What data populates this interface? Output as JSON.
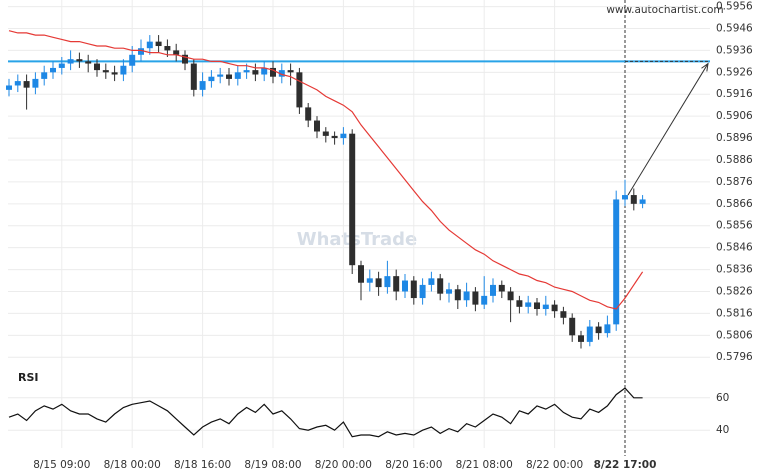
{
  "chart_data": {
    "type": "candlestick",
    "source": "www.autochartist.com",
    "watermark": "WhatsTrade",
    "categories": [
      null,
      null,
      null,
      null,
      null,
      null,
      "8/15 09:00",
      null,
      null,
      null,
      null,
      null,
      null,
      null,
      "8/18 00:00",
      null,
      null,
      null,
      null,
      null,
      null,
      null,
      "8/18 16:00",
      null,
      null,
      null,
      null,
      null,
      null,
      null,
      "8/19 08:00",
      null,
      null,
      null,
      null,
      null,
      null,
      null,
      "8/20 00:00",
      null,
      null,
      null,
      null,
      null,
      null,
      null,
      "8/20 16:00",
      null,
      null,
      null,
      null,
      null,
      null,
      null,
      "8/21 08:00",
      null,
      null,
      null,
      null,
      null,
      null,
      null,
      "8/22 00:00",
      null,
      null,
      null,
      null,
      null,
      null,
      null,
      "8/22 17:00",
      null,
      null
    ],
    "open": [
      0.5918,
      0.592,
      0.5922,
      0.5919,
      0.5923,
      0.5926,
      0.5928,
      0.593,
      0.5932,
      0.5931,
      0.593,
      0.5927,
      0.5926,
      0.5925,
      0.5929,
      0.5934,
      0.5937,
      0.594,
      0.5938,
      0.5936,
      0.5934,
      0.593,
      0.5918,
      0.5922,
      0.5924,
      0.5925,
      0.5923,
      0.5926,
      0.5927,
      0.5925,
      0.5928,
      0.5924,
      0.5927,
      0.5926,
      0.591,
      0.5904,
      0.5899,
      0.5897,
      0.5896,
      0.5898,
      0.5838,
      0.583,
      0.5832,
      0.5828,
      0.5833,
      0.5826,
      0.5831,
      0.5823,
      0.5829,
      0.5832,
      0.5825,
      0.5827,
      0.5822,
      0.5826,
      0.582,
      0.5824,
      0.5829,
      0.5826,
      0.5822,
      0.5819,
      0.5821,
      0.5818,
      0.582,
      0.5817,
      0.5814,
      0.5806,
      0.5803,
      0.581,
      0.5807,
      0.5811,
      0.5868,
      0.587,
      0.5866
    ],
    "high": [
      0.5923,
      0.5925,
      0.5925,
      0.5926,
      0.5929,
      0.5931,
      0.5933,
      0.5936,
      0.5935,
      0.5934,
      0.5932,
      0.593,
      0.5929,
      0.5932,
      0.5938,
      0.5941,
      0.5943,
      0.5943,
      0.5941,
      0.5939,
      0.5936,
      0.5932,
      0.5926,
      0.5927,
      0.5928,
      0.5928,
      0.5929,
      0.593,
      0.593,
      0.5931,
      0.5931,
      0.593,
      0.593,
      0.5928,
      0.5912,
      0.5906,
      0.5901,
      0.5899,
      0.5901,
      0.59,
      0.584,
      0.5836,
      0.5835,
      0.584,
      0.5836,
      0.5834,
      0.5833,
      0.5832,
      0.5835,
      0.5834,
      0.583,
      0.5829,
      0.583,
      0.5828,
      0.5833,
      0.5832,
      0.5831,
      0.5828,
      0.5824,
      0.5824,
      0.5823,
      0.5824,
      0.5822,
      0.5819,
      0.5816,
      0.5808,
      0.5813,
      0.5812,
      0.5815,
      0.5872,
      0.5877,
      0.5873,
      0.587
    ],
    "low": [
      0.5915,
      0.5917,
      0.5909,
      0.5916,
      0.592,
      0.5923,
      0.5925,
      0.5927,
      0.5928,
      0.5926,
      0.5924,
      0.5923,
      0.5922,
      0.5922,
      0.5926,
      0.5931,
      0.5934,
      0.5935,
      0.5933,
      0.5931,
      0.5927,
      0.5915,
      0.5915,
      0.5919,
      0.5921,
      0.592,
      0.592,
      0.5923,
      0.5922,
      0.5922,
      0.5921,
      0.5921,
      0.592,
      0.5907,
      0.5901,
      0.5896,
      0.5894,
      0.5893,
      0.5893,
      0.5834,
      0.5822,
      0.5826,
      0.5824,
      0.5825,
      0.5822,
      0.5823,
      0.582,
      0.582,
      0.5826,
      0.5822,
      0.5821,
      0.5818,
      0.5819,
      0.5817,
      0.5818,
      0.5821,
      0.5823,
      0.5812,
      0.5816,
      0.5816,
      0.5815,
      0.5815,
      0.5814,
      0.5811,
      0.5803,
      0.58,
      0.5801,
      0.5804,
      0.5805,
      0.5808,
      0.5865,
      0.5863,
      0.5864
    ],
    "close": [
      0.592,
      0.5922,
      0.5919,
      0.5923,
      0.5926,
      0.5928,
      0.593,
      0.5932,
      0.5931,
      0.593,
      0.5927,
      0.5926,
      0.5925,
      0.5929,
      0.5934,
      0.5937,
      0.594,
      0.5938,
      0.5936,
      0.5934,
      0.593,
      0.5918,
      0.5922,
      0.5924,
      0.5925,
      0.5923,
      0.5926,
      0.5927,
      0.5925,
      0.5928,
      0.5924,
      0.5927,
      0.5926,
      0.591,
      0.5904,
      0.5899,
      0.5897,
      0.5896,
      0.5898,
      0.5838,
      0.583,
      0.5832,
      0.5828,
      0.5833,
      0.5826,
      0.5831,
      0.5823,
      0.5829,
      0.5832,
      0.5825,
      0.5827,
      0.5822,
      0.5826,
      0.582,
      0.5824,
      0.5829,
      0.5826,
      0.5822,
      0.5819,
      0.5821,
      0.5818,
      0.582,
      0.5817,
      0.5814,
      0.5806,
      0.5803,
      0.581,
      0.5807,
      0.5811,
      0.5868,
      0.587,
      0.5866,
      0.5868
    ],
    "up_color": "#1e88e5",
    "down_color": "#2e2e2e",
    "ma": {
      "color": "#e53935",
      "values": [
        0.5945,
        0.5944,
        0.5944,
        0.5943,
        0.5943,
        0.5942,
        0.5941,
        0.594,
        0.594,
        0.5939,
        0.5938,
        0.5938,
        0.5937,
        0.5937,
        0.5936,
        0.5936,
        0.5935,
        0.5935,
        0.5934,
        0.5934,
        0.5933,
        0.5932,
        0.5932,
        0.5931,
        0.5931,
        0.593,
        0.5929,
        0.5929,
        0.5928,
        0.5928,
        0.5927,
        0.5925,
        0.5924,
        0.5922,
        0.592,
        0.5918,
        0.5915,
        0.5913,
        0.5911,
        0.5908,
        0.5902,
        0.5897,
        0.5892,
        0.5887,
        0.5882,
        0.5877,
        0.5872,
        0.5867,
        0.5863,
        0.5858,
        0.5854,
        0.5851,
        0.5848,
        0.5845,
        0.5843,
        0.584,
        0.5838,
        0.5836,
        0.5834,
        0.5833,
        0.5831,
        0.583,
        0.5828,
        0.5827,
        0.5826,
        0.5824,
        0.5822,
        0.5821,
        0.5819,
        0.5818,
        0.5823,
        0.5829,
        0.5835
      ]
    },
    "level": {
      "value": 0.5931,
      "color": "#29a3e8"
    },
    "forecast": {
      "from": 0.587,
      "to": 0.593
    },
    "ylim": [
      0.5792,
      0.5959
    ],
    "yticks": [
      0.5956,
      0.5946,
      0.5936,
      0.5926,
      0.5916,
      0.5906,
      0.5896,
      0.5886,
      0.5876,
      0.5866,
      0.5856,
      0.5846,
      0.5836,
      0.5826,
      0.5816,
      0.5806,
      0.5796
    ],
    "rsi": {
      "label": "RSI",
      "ylim": [
        29,
        71
      ],
      "yticks": [
        40,
        60
      ],
      "values": [
        48,
        50,
        46,
        52,
        55,
        53,
        56,
        52,
        50,
        50,
        47,
        45,
        50,
        54,
        56,
        57,
        58,
        55,
        52,
        47,
        42,
        37,
        42,
        45,
        47,
        44,
        50,
        54,
        51,
        56,
        50,
        52,
        47,
        41,
        40,
        42,
        43,
        40,
        45,
        36,
        37,
        37,
        36,
        39,
        37,
        38,
        37,
        40,
        42,
        38,
        41,
        39,
        44,
        42,
        46,
        50,
        48,
        44,
        52,
        50,
        55,
        53,
        56,
        51,
        48,
        47,
        53,
        51,
        55,
        62,
        66,
        60,
        60
      ]
    }
  }
}
